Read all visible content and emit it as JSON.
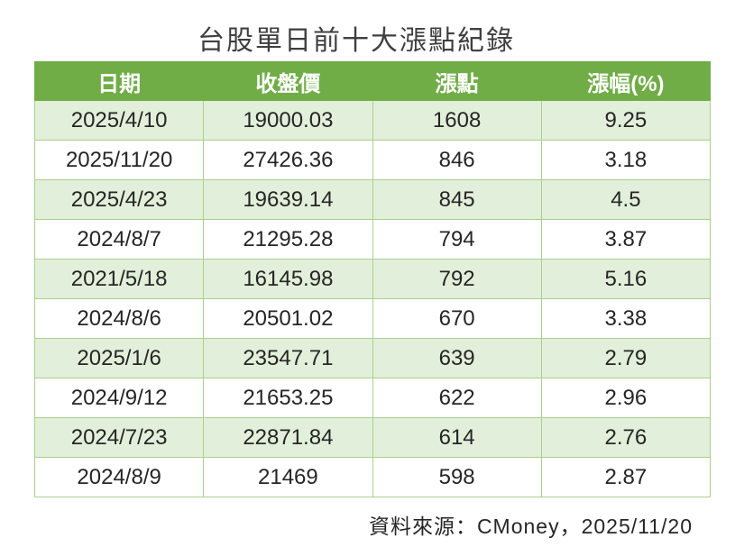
{
  "title": "台股單日前十大漲點紀錄",
  "table": {
    "columns": [
      "日期",
      "收盤價",
      "漲點",
      "漲幅(%)"
    ],
    "rows": [
      [
        "2025/4/10",
        "19000.03",
        "1608",
        "9.25"
      ],
      [
        "2025/11/20",
        "27426.36",
        "846",
        "3.18"
      ],
      [
        "2025/4/23",
        "19639.14",
        "845",
        "4.5"
      ],
      [
        "2024/8/7",
        "21295.28",
        "794",
        "3.87"
      ],
      [
        "2021/5/18",
        "16145.98",
        "792",
        "5.16"
      ],
      [
        "2024/8/6",
        "20501.02",
        "670",
        "3.38"
      ],
      [
        "2025/1/6",
        "23547.71",
        "639",
        "2.79"
      ],
      [
        "2024/9/12",
        "21653.25",
        "622",
        "2.96"
      ],
      [
        "2024/7/23",
        "22871.84",
        "614",
        "2.76"
      ],
      [
        "2024/8/9",
        "21469",
        "598",
        "2.87"
      ]
    ]
  },
  "footer": {
    "source_label": "資料來源：CMoney，2025/11/20"
  },
  "colors": {
    "header_bg": "#70AD47",
    "row_band_bg": "#E2EFDA",
    "row_bg": "#FFFFFF",
    "border": "#A9D08E",
    "header_text": "#FFFFFF",
    "body_text": "#262626",
    "title_text": "#3F3F3F"
  },
  "chart_data": {
    "type": "table",
    "title": "台股單日前十大漲點紀錄",
    "columns": [
      "日期",
      "收盤價",
      "漲點",
      "漲幅(%)"
    ],
    "rows": [
      {
        "date": "2025/4/10",
        "close": 19000.03,
        "points": 1608,
        "pct": 9.25
      },
      {
        "date": "2025/11/20",
        "close": 27426.36,
        "points": 846,
        "pct": 3.18
      },
      {
        "date": "2025/4/23",
        "close": 19639.14,
        "points": 845,
        "pct": 4.5
      },
      {
        "date": "2024/8/7",
        "close": 21295.28,
        "points": 794,
        "pct": 3.87
      },
      {
        "date": "2021/5/18",
        "close": 16145.98,
        "points": 792,
        "pct": 5.16
      },
      {
        "date": "2024/8/6",
        "close": 20501.02,
        "points": 670,
        "pct": 3.38
      },
      {
        "date": "2025/1/6",
        "close": 23547.71,
        "points": 639,
        "pct": 2.79
      },
      {
        "date": "2024/9/12",
        "close": 21653.25,
        "points": 622,
        "pct": 2.96
      },
      {
        "date": "2024/7/23",
        "close": 22871.84,
        "points": 614,
        "pct": 2.76
      },
      {
        "date": "2024/8/9",
        "close": 21469,
        "points": 598,
        "pct": 2.87
      }
    ],
    "source": "資料來源：CMoney，2025/11/20",
    "legend_position": "none",
    "grid": true
  }
}
